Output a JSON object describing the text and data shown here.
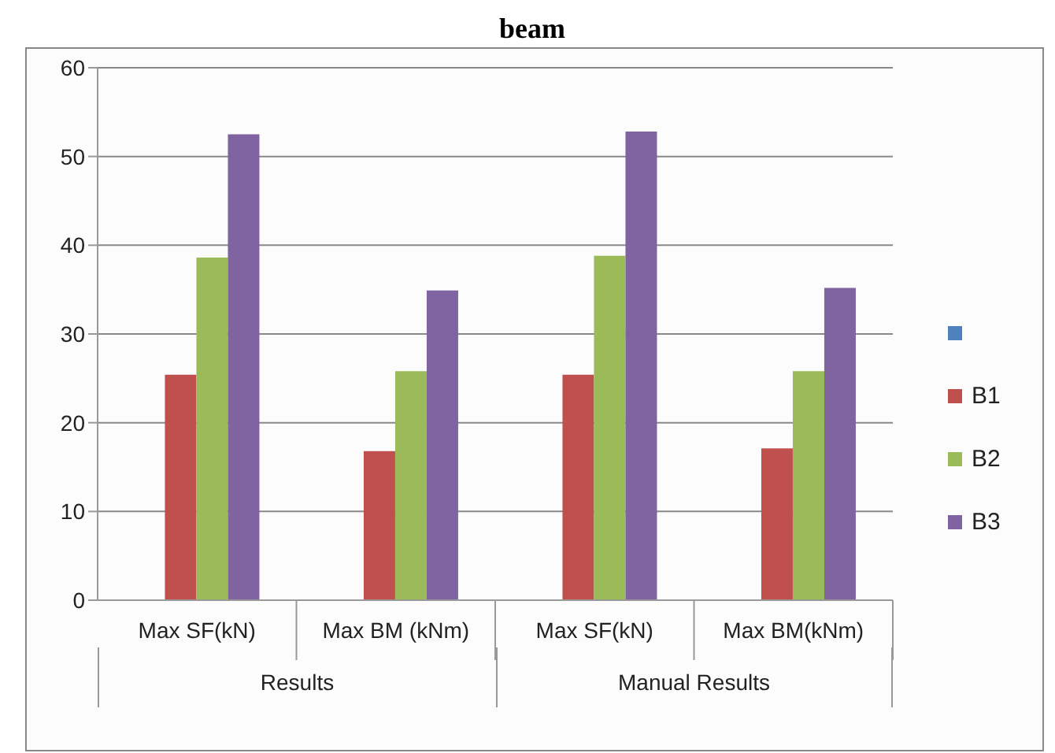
{
  "chart_data": {
    "type": "bar",
    "title": "beam",
    "categories": [
      "Max SF(kN)",
      "Max BM (kNm)",
      "Max SF(kN)",
      "Max BM(kNm)"
    ],
    "series": [
      {
        "color": "#4f81bd",
        "values": [
          null,
          null,
          null,
          null
        ]
      },
      {
        "name": "B1",
        "color": "#c0504d",
        "values": [
          25.4,
          16.8,
          25.4,
          17.1
        ]
      },
      {
        "name": "B2",
        "color": "#9bbb59",
        "values": [
          38.6,
          25.8,
          38.8,
          25.8
        ]
      },
      {
        "name": "B3",
        "color": "#8064a2",
        "values": [
          52.5,
          34.9,
          52.8,
          35.2
        ]
      }
    ],
    "ylim": [
      0,
      60
    ],
    "yticks": [
      0,
      10,
      20,
      30,
      40,
      50,
      60
    ],
    "grid": "y",
    "legend": "right",
    "annotations": [
      "Results",
      "Manual Results"
    ]
  }
}
